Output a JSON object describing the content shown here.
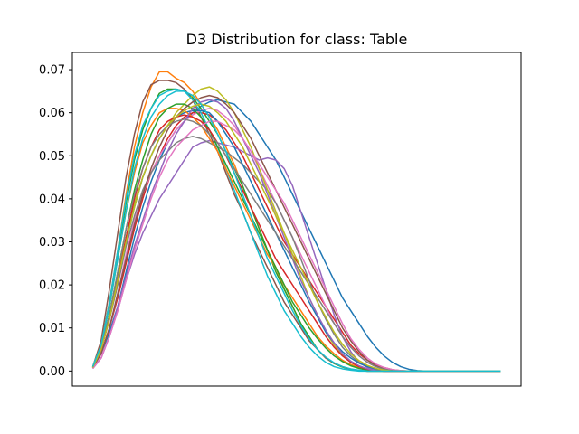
{
  "chart_data": {
    "type": "line",
    "title": "D3 Distribution for class: Table",
    "xlabel": "",
    "ylabel": "",
    "x": [
      0,
      1,
      2,
      3,
      4,
      5,
      6,
      7,
      8,
      9,
      10,
      11,
      12,
      13,
      14,
      15,
      16,
      17,
      18,
      19,
      20,
      21,
      22,
      23,
      24,
      25,
      26,
      27,
      28,
      29,
      30,
      31,
      32,
      33,
      34,
      35,
      36,
      37,
      38,
      39,
      40,
      41,
      42,
      43,
      44,
      45,
      46,
      47,
      48,
      49
    ],
    "xlim": [
      -2.45,
      51.45
    ],
    "ylim": [
      -0.0035,
      0.074
    ],
    "yticks": [
      0.0,
      0.01,
      0.02,
      0.03,
      0.04,
      0.05,
      0.06,
      0.07
    ],
    "ytick_labels": [
      "0.00",
      "0.01",
      "0.02",
      "0.03",
      "0.04",
      "0.05",
      "0.06",
      "0.07"
    ],
    "xaxis_ticks_visible": false,
    "grid": false,
    "legend": "none",
    "series": [
      {
        "color": "#1f77b4",
        "values": [
          0.0008,
          0.004,
          0.009,
          0.015,
          0.023,
          0.031,
          0.038,
          0.044,
          0.049,
          0.053,
          0.056,
          0.058,
          0.06,
          0.0615,
          0.0625,
          0.063,
          0.0625,
          0.062,
          0.06,
          0.058,
          0.055,
          0.052,
          0.049,
          0.045,
          0.041,
          0.037,
          0.033,
          0.029,
          0.025,
          0.021,
          0.017,
          0.014,
          0.011,
          0.008,
          0.0055,
          0.0035,
          0.002,
          0.001,
          0.0004,
          0.0001,
          0.0,
          0.0,
          0.0,
          0.0,
          0.0,
          0.0,
          0.0,
          0.0,
          0.0,
          0.0
        ]
      },
      {
        "color": "#ff7f0e",
        "values": [
          0.0008,
          0.006,
          0.016,
          0.028,
          0.041,
          0.052,
          0.06,
          0.066,
          0.0695,
          0.0695,
          0.068,
          0.067,
          0.065,
          0.062,
          0.059,
          0.056,
          0.052,
          0.048,
          0.043,
          0.038,
          0.033,
          0.028,
          0.024,
          0.019,
          0.015,
          0.011,
          0.0075,
          0.005,
          0.003,
          0.0018,
          0.001,
          0.0004,
          0.0001,
          0.0,
          0.0,
          0.0,
          0.0,
          0.0,
          0.0,
          0.0,
          0.0,
          0.0,
          0.0,
          0.0,
          0.0,
          0.0,
          0.0,
          0.0,
          0.0,
          0.0
        ]
      },
      {
        "color": "#2ca02c",
        "values": [
          0.001,
          0.006,
          0.015,
          0.027,
          0.039,
          0.049,
          0.056,
          0.061,
          0.0645,
          0.0655,
          0.0655,
          0.065,
          0.0635,
          0.061,
          0.058,
          0.055,
          0.051,
          0.047,
          0.043,
          0.038,
          0.033,
          0.028,
          0.023,
          0.019,
          0.015,
          0.011,
          0.008,
          0.005,
          0.003,
          0.0017,
          0.0009,
          0.0004,
          0.0001,
          0.0,
          0.0,
          0.0,
          0.0,
          0.0,
          0.0,
          0.0,
          0.0,
          0.0,
          0.0,
          0.0,
          0.0,
          0.0,
          0.0,
          0.0,
          0.0,
          0.0
        ]
      },
      {
        "color": "#d62728",
        "values": [
          0.0008,
          0.004,
          0.01,
          0.017,
          0.025,
          0.033,
          0.04,
          0.046,
          0.05,
          0.054,
          0.057,
          0.059,
          0.06,
          0.06,
          0.0595,
          0.058,
          0.056,
          0.053,
          0.05,
          0.046,
          0.042,
          0.038,
          0.034,
          0.03,
          0.027,
          0.024,
          0.021,
          0.018,
          0.015,
          0.012,
          0.009,
          0.006,
          0.004,
          0.0025,
          0.0015,
          0.0008,
          0.0003,
          0.0001,
          0.0,
          0.0,
          0.0,
          0.0,
          0.0,
          0.0,
          0.0,
          0.0,
          0.0,
          0.0,
          0.0,
          0.0
        ]
      },
      {
        "color": "#9467bd",
        "values": [
          0.0006,
          0.003,
          0.008,
          0.014,
          0.021,
          0.027,
          0.032,
          0.036,
          0.04,
          0.043,
          0.046,
          0.049,
          0.052,
          0.053,
          0.0535,
          0.053,
          0.0525,
          0.052,
          0.051,
          0.05,
          0.049,
          0.0495,
          0.049,
          0.047,
          0.043,
          0.037,
          0.031,
          0.025,
          0.019,
          0.013,
          0.008,
          0.0045,
          0.002,
          0.0008,
          0.0002,
          0.0,
          0.0,
          0.0,
          0.0,
          0.0,
          0.0,
          0.0,
          0.0,
          0.0,
          0.0,
          0.0,
          0.0,
          0.0,
          0.0,
          0.0
        ]
      },
      {
        "color": "#8c564b",
        "values": [
          0.001,
          0.007,
          0.019,
          0.032,
          0.045,
          0.055,
          0.0625,
          0.0665,
          0.0675,
          0.0675,
          0.067,
          0.0655,
          0.063,
          0.059,
          0.055,
          0.051,
          0.046,
          0.041,
          0.037,
          0.032,
          0.028,
          0.024,
          0.02,
          0.016,
          0.013,
          0.01,
          0.007,
          0.005,
          0.003,
          0.0018,
          0.001,
          0.0004,
          0.0001,
          0.0,
          0.0,
          0.0,
          0.0,
          0.0,
          0.0,
          0.0,
          0.0,
          0.0,
          0.0,
          0.0,
          0.0,
          0.0,
          0.0,
          0.0,
          0.0,
          0.0
        ]
      },
      {
        "color": "#e377c2",
        "values": [
          0.0006,
          0.004,
          0.01,
          0.018,
          0.027,
          0.035,
          0.041,
          0.046,
          0.05,
          0.053,
          0.056,
          0.058,
          0.0595,
          0.0605,
          0.061,
          0.0605,
          0.059,
          0.057,
          0.054,
          0.051,
          0.047,
          0.043,
          0.039,
          0.035,
          0.031,
          0.027,
          0.023,
          0.019,
          0.015,
          0.011,
          0.008,
          0.0055,
          0.0035,
          0.002,
          0.001,
          0.0005,
          0.0001,
          0.0,
          0.0,
          0.0,
          0.0,
          0.0,
          0.0,
          0.0,
          0.0,
          0.0,
          0.0,
          0.0,
          0.0,
          0.0
        ]
      },
      {
        "color": "#7f7f7f",
        "values": [
          0.0008,
          0.005,
          0.012,
          0.02,
          0.029,
          0.036,
          0.042,
          0.046,
          0.049,
          0.051,
          0.053,
          0.054,
          0.0545,
          0.054,
          0.053,
          0.052,
          0.051,
          0.0495,
          0.048,
          0.046,
          0.044,
          0.042,
          0.039,
          0.035,
          0.031,
          0.026,
          0.021,
          0.016,
          0.012,
          0.0085,
          0.0055,
          0.0035,
          0.002,
          0.001,
          0.0005,
          0.0002,
          0.0,
          0.0,
          0.0,
          0.0,
          0.0,
          0.0,
          0.0,
          0.0,
          0.0,
          0.0,
          0.0,
          0.0,
          0.0,
          0.0
        ]
      },
      {
        "color": "#bcbd22",
        "values": [
          0.0008,
          0.005,
          0.013,
          0.022,
          0.031,
          0.039,
          0.045,
          0.05,
          0.054,
          0.057,
          0.06,
          0.062,
          0.064,
          0.0655,
          0.066,
          0.065,
          0.063,
          0.06,
          0.056,
          0.052,
          0.047,
          0.042,
          0.037,
          0.032,
          0.027,
          0.022,
          0.017,
          0.013,
          0.009,
          0.006,
          0.0037,
          0.002,
          0.001,
          0.0004,
          0.0001,
          0.0,
          0.0,
          0.0,
          0.0,
          0.0,
          0.0,
          0.0,
          0.0,
          0.0,
          0.0,
          0.0,
          0.0,
          0.0,
          0.0,
          0.0
        ]
      },
      {
        "color": "#17becf",
        "values": [
          0.001,
          0.006,
          0.016,
          0.028,
          0.04,
          0.05,
          0.057,
          0.061,
          0.064,
          0.065,
          0.0655,
          0.065,
          0.063,
          0.06,
          0.056,
          0.052,
          0.047,
          0.042,
          0.037,
          0.032,
          0.027,
          0.022,
          0.018,
          0.014,
          0.011,
          0.008,
          0.0055,
          0.0035,
          0.002,
          0.001,
          0.0005,
          0.0002,
          0.0,
          0.0,
          0.0,
          0.0,
          0.0,
          0.0,
          0.0,
          0.0,
          0.0,
          0.0,
          0.0,
          0.0,
          0.0,
          0.0,
          0.0,
          0.0,
          0.0,
          0.0
        ]
      },
      {
        "color": "#1f77b4",
        "values": [
          0.0008,
          0.005,
          0.012,
          0.021,
          0.03,
          0.038,
          0.045,
          0.05,
          0.054,
          0.057,
          0.059,
          0.06,
          0.0605,
          0.0605,
          0.06,
          0.058,
          0.055,
          0.052,
          0.048,
          0.044,
          0.04,
          0.036,
          0.032,
          0.028,
          0.024,
          0.02,
          0.016,
          0.0125,
          0.009,
          0.0065,
          0.0045,
          0.003,
          0.0018,
          0.001,
          0.0005,
          0.0002,
          0.0,
          0.0,
          0.0,
          0.0,
          0.0,
          0.0,
          0.0,
          0.0,
          0.0,
          0.0,
          0.0,
          0.0,
          0.0,
          0.0
        ]
      },
      {
        "color": "#ff7f0e",
        "values": [
          0.001,
          0.006,
          0.015,
          0.026,
          0.037,
          0.046,
          0.053,
          0.057,
          0.06,
          0.061,
          0.061,
          0.0605,
          0.059,
          0.057,
          0.054,
          0.051,
          0.047,
          0.043,
          0.039,
          0.035,
          0.031,
          0.027,
          0.024,
          0.02,
          0.017,
          0.014,
          0.011,
          0.008,
          0.0058,
          0.004,
          0.0025,
          0.0015,
          0.0008,
          0.0003,
          0.0001,
          0.0,
          0.0,
          0.0,
          0.0,
          0.0,
          0.0,
          0.0,
          0.0,
          0.0,
          0.0,
          0.0,
          0.0,
          0.0,
          0.0,
          0.0
        ]
      },
      {
        "color": "#2ca02c",
        "values": [
          0.0008,
          0.005,
          0.013,
          0.023,
          0.033,
          0.042,
          0.049,
          0.055,
          0.059,
          0.061,
          0.062,
          0.062,
          0.061,
          0.059,
          0.056,
          0.052,
          0.048,
          0.044,
          0.04,
          0.036,
          0.032,
          0.028,
          0.024,
          0.02,
          0.016,
          0.013,
          0.01,
          0.0075,
          0.0053,
          0.0035,
          0.0022,
          0.0012,
          0.0006,
          0.0002,
          0.0001,
          0.0,
          0.0,
          0.0,
          0.0,
          0.0,
          0.0,
          0.0,
          0.0,
          0.0,
          0.0,
          0.0,
          0.0,
          0.0,
          0.0,
          0.0
        ]
      },
      {
        "color": "#d62728",
        "values": [
          0.001,
          0.005,
          0.012,
          0.021,
          0.031,
          0.04,
          0.047,
          0.052,
          0.056,
          0.058,
          0.059,
          0.0595,
          0.059,
          0.058,
          0.056,
          0.053,
          0.05,
          0.046,
          0.042,
          0.038,
          0.034,
          0.03,
          0.026,
          0.023,
          0.02,
          0.017,
          0.014,
          0.011,
          0.008,
          0.0055,
          0.0035,
          0.002,
          0.001,
          0.0004,
          0.0001,
          0.0,
          0.0,
          0.0,
          0.0,
          0.0,
          0.0,
          0.0,
          0.0,
          0.0,
          0.0,
          0.0,
          0.0,
          0.0,
          0.0,
          0.0
        ]
      },
      {
        "color": "#9467bd",
        "values": [
          0.0006,
          0.003,
          0.008,
          0.015,
          0.022,
          0.029,
          0.035,
          0.041,
          0.046,
          0.051,
          0.055,
          0.058,
          0.061,
          0.0625,
          0.063,
          0.0625,
          0.061,
          0.058,
          0.054,
          0.05,
          0.046,
          0.041,
          0.036,
          0.031,
          0.026,
          0.021,
          0.017,
          0.013,
          0.0095,
          0.0065,
          0.004,
          0.0023,
          0.0012,
          0.0005,
          0.0001,
          0.0,
          0.0,
          0.0,
          0.0,
          0.0,
          0.0,
          0.0,
          0.0,
          0.0,
          0.0,
          0.0,
          0.0,
          0.0,
          0.0,
          0.0
        ]
      },
      {
        "color": "#8c564b",
        "values": [
          0.0008,
          0.004,
          0.01,
          0.018,
          0.026,
          0.034,
          0.041,
          0.047,
          0.052,
          0.056,
          0.059,
          0.061,
          0.0625,
          0.0635,
          0.064,
          0.0635,
          0.062,
          0.06,
          0.057,
          0.054,
          0.05,
          0.046,
          0.042,
          0.038,
          0.034,
          0.03,
          0.026,
          0.022,
          0.018,
          0.014,
          0.01,
          0.007,
          0.0045,
          0.0025,
          0.0012,
          0.0005,
          0.0001,
          0.0,
          0.0,
          0.0,
          0.0,
          0.0,
          0.0,
          0.0,
          0.0,
          0.0,
          0.0,
          0.0,
          0.0,
          0.0
        ]
      },
      {
        "color": "#e377c2",
        "values": [
          0.0006,
          0.003,
          0.008,
          0.014,
          0.021,
          0.028,
          0.034,
          0.04,
          0.045,
          0.049,
          0.052,
          0.054,
          0.056,
          0.057,
          0.058,
          0.058,
          0.057,
          0.056,
          0.054,
          0.051,
          0.048,
          0.045,
          0.042,
          0.039,
          0.035,
          0.031,
          0.027,
          0.023,
          0.019,
          0.015,
          0.011,
          0.0075,
          0.005,
          0.003,
          0.0016,
          0.0008,
          0.0003,
          0.0001,
          0.0,
          0.0,
          0.0,
          0.0,
          0.0,
          0.0,
          0.0,
          0.0,
          0.0,
          0.0,
          0.0,
          0.0
        ]
      },
      {
        "color": "#7f7f7f",
        "values": [
          0.001,
          0.005,
          0.013,
          0.023,
          0.033,
          0.041,
          0.047,
          0.052,
          0.055,
          0.057,
          0.058,
          0.0585,
          0.058,
          0.057,
          0.055,
          0.053,
          0.05,
          0.047,
          0.044,
          0.041,
          0.038,
          0.035,
          0.032,
          0.029,
          0.026,
          0.023,
          0.02,
          0.017,
          0.014,
          0.011,
          0.008,
          0.0055,
          0.0035,
          0.002,
          0.001,
          0.0004,
          0.0001,
          0.0,
          0.0,
          0.0,
          0.0,
          0.0,
          0.0,
          0.0,
          0.0,
          0.0,
          0.0,
          0.0,
          0.0,
          0.0
        ]
      },
      {
        "color": "#bcbd22",
        "values": [
          0.0008,
          0.005,
          0.012,
          0.021,
          0.03,
          0.038,
          0.045,
          0.05,
          0.054,
          0.057,
          0.059,
          0.0605,
          0.0615,
          0.062,
          0.0615,
          0.06,
          0.058,
          0.055,
          0.052,
          0.048,
          0.044,
          0.04,
          0.036,
          0.032,
          0.028,
          0.024,
          0.02,
          0.016,
          0.0125,
          0.009,
          0.0062,
          0.004,
          0.0024,
          0.0013,
          0.0006,
          0.0002,
          0.0,
          0.0,
          0.0,
          0.0,
          0.0,
          0.0,
          0.0,
          0.0,
          0.0,
          0.0,
          0.0,
          0.0,
          0.0,
          0.0
        ]
      },
      {
        "color": "#17becf",
        "values": [
          0.001,
          0.006,
          0.015,
          0.026,
          0.037,
          0.047,
          0.054,
          0.059,
          0.062,
          0.064,
          0.065,
          0.065,
          0.064,
          0.062,
          0.059,
          0.055,
          0.051,
          0.046,
          0.041,
          0.036,
          0.031,
          0.026,
          0.022,
          0.018,
          0.014,
          0.0105,
          0.0075,
          0.005,
          0.0032,
          0.0019,
          0.001,
          0.0005,
          0.0002,
          0.0,
          0.0,
          0.0,
          0.0,
          0.0,
          0.0,
          0.0,
          0.0,
          0.0,
          0.0,
          0.0,
          0.0,
          0.0,
          0.0,
          0.0,
          0.0,
          0.0
        ]
      }
    ]
  }
}
